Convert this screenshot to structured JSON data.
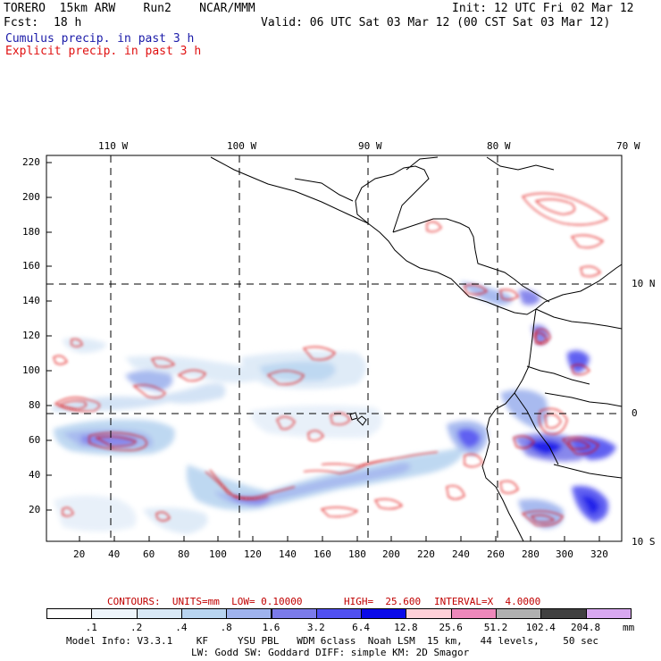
{
  "header": {
    "model": "TORERO  15km ARW    Run2    NCAR/MMM",
    "init": "Init: 12 UTC Fri 02 Mar 12",
    "fcst_label": "Fcst:",
    "fcst_value": "18 h",
    "valid": "Valid: 06 UTC Sat 03 Mar 12 (00 CST Sat 03 Mar 12)",
    "cumulus": "Cumulus precip. in past 3 h",
    "explicit": "Explicit precip. in past 3 h",
    "cumulus_color": "#1a1aa8",
    "explicit_color": "#e01010"
  },
  "longitudes": [
    "110 W",
    "100 W",
    "90 W",
    "80 W",
    "70 W"
  ],
  "latitudes": [
    "10 N",
    "0",
    "10 S"
  ],
  "y_ticks": [
    "220",
    "200",
    "180",
    "160",
    "140",
    "120",
    "100",
    "80",
    "60",
    "40",
    "20"
  ],
  "x_ticks": [
    "20",
    "40",
    "60",
    "80",
    "100",
    "120",
    "140",
    "160",
    "180",
    "200",
    "220",
    "240",
    "260",
    "280",
    "300",
    "320"
  ],
  "contours": {
    "label_prefix": "CONTOURS:  UNITS=mm  LOW= 0.10000",
    "label_high": "HIGH=  25.600",
    "label_interval": "INTERVAL=X  4.0000",
    "color": "#c00000"
  },
  "colorbar": {
    "labels": [
      ".1",
      ".2",
      ".4",
      ".8",
      "1.6",
      "3.2",
      "6.4",
      "12.8",
      "25.6",
      "51.2",
      "102.4",
      "204.8"
    ],
    "units": "mm",
    "colors": [
      "#ffffff",
      "#eef5fb",
      "#d8e8f6",
      "#b8d4f0",
      "#9fb3ee",
      "#7b7bea",
      "#5050f0",
      "#0a0ae8",
      "#ffd0d8",
      "#ee88bb",
      "#b0b0b0",
      "#404040",
      "#d8a8f0"
    ]
  },
  "footer": {
    "line1": "Model Info: V3.3.1    KF     YSU PBL   WDM 6class  Noah LSM  15 km,   44 levels,    50 sec",
    "line2": "LW: Godd SW: Goddard DIFF: simple KM: 2D Smagor"
  }
}
